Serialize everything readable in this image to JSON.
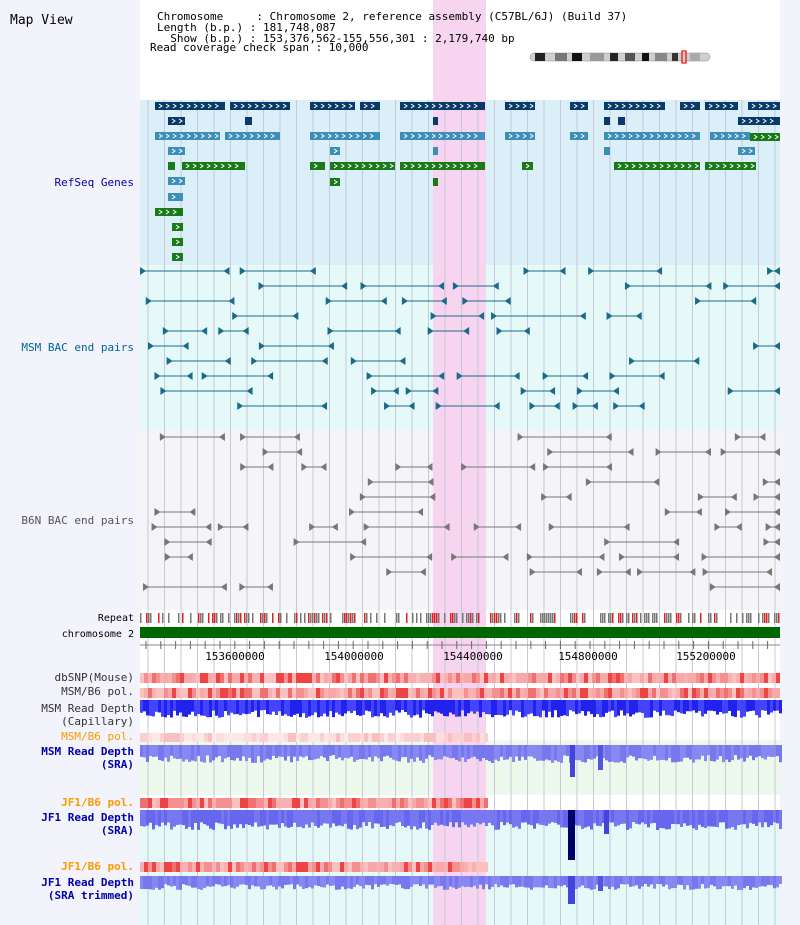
{
  "title": "Map View",
  "header": {
    "lines": [
      "Chromosome     : Chromosome 2, reference assembly (C57BL/6J) (Build 37)",
      "Length (b.p.) : 181,748,087",
      "  Show (b.p.) : 153,376,562-155,556,301 : 2,179,740 bp",
      "Read coverage check span : 10,000"
    ]
  },
  "tracks": {
    "refseq": "RefSeq Genes",
    "msm_bac": "MSM BAC end pairs",
    "b6n_bac": "B6N BAC end pairs",
    "repeat": "Repeat",
    "chromosome": "chromosome 2",
    "dbsnp": "dbSNP(Mouse)",
    "msm_b6_pol": "MSM/B6 pol.",
    "msm_depth_cap": [
      "MSM Read Depth",
      "(Capillary)"
    ],
    "msm_b6_pol2": "MSM/B6 pol.",
    "msm_depth_sra": [
      "MSM Read Depth",
      "(SRA)"
    ],
    "jf1_b6_pol": "JF1/B6 pol.",
    "jf1_depth_sra": [
      "JF1 Read Depth",
      "(SRA)"
    ],
    "jf1_b6_pol2": "JF1/B6 pol.",
    "jf1_depth_trim": [
      "JF1 Read Depth",
      "(SRA trimmed)"
    ]
  },
  "ruler": {
    "ticks": [
      "153600000",
      "154000000",
      "154400000",
      "154800000",
      "155200000"
    ]
  },
  "colors": {
    "label_blue": "#0000aa",
    "label_teal": "#006699",
    "label_orange": "#ff9900",
    "refseq_bg": "#dbeff8",
    "msm_bac_bg": "#e6f9f9",
    "b6n_bac_bg": "#f5f5f8",
    "highlight": "#f7d5f0",
    "chrom_green": "#006600"
  }
}
